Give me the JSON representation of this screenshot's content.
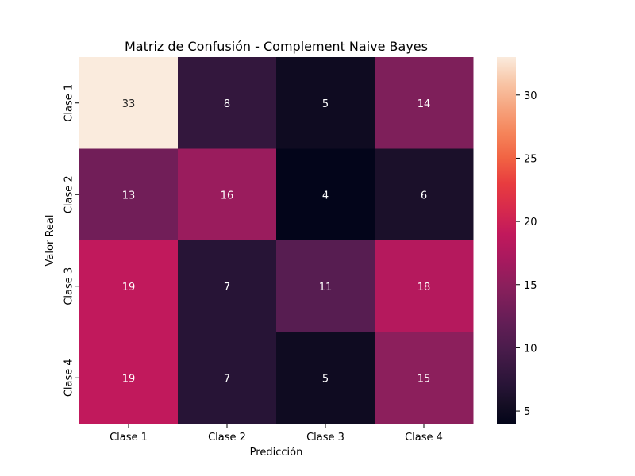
{
  "chart_data": {
    "type": "heatmap",
    "title": "Matriz de Confusión - Complement Naive Bayes",
    "xlabel": "Predicción",
    "ylabel": "Valor Real",
    "x_categories": [
      "Clase 1",
      "Clase 2",
      "Clase 3",
      "Clase 4"
    ],
    "y_categories": [
      "Clase 1",
      "Clase 2",
      "Clase 3",
      "Clase 4"
    ],
    "values": [
      [
        33,
        8,
        5,
        14
      ],
      [
        13,
        16,
        4,
        6
      ],
      [
        19,
        7,
        11,
        18
      ],
      [
        19,
        7,
        5,
        15
      ]
    ],
    "value_range": [
      4,
      33
    ],
    "colorbar": {
      "colormap": "rocket",
      "ticks": [
        5,
        10,
        15,
        20,
        25,
        30
      ],
      "tick_labels": [
        "5",
        "10",
        "15",
        "20",
        "25",
        "30"
      ]
    },
    "annotations": true,
    "grid": false
  }
}
